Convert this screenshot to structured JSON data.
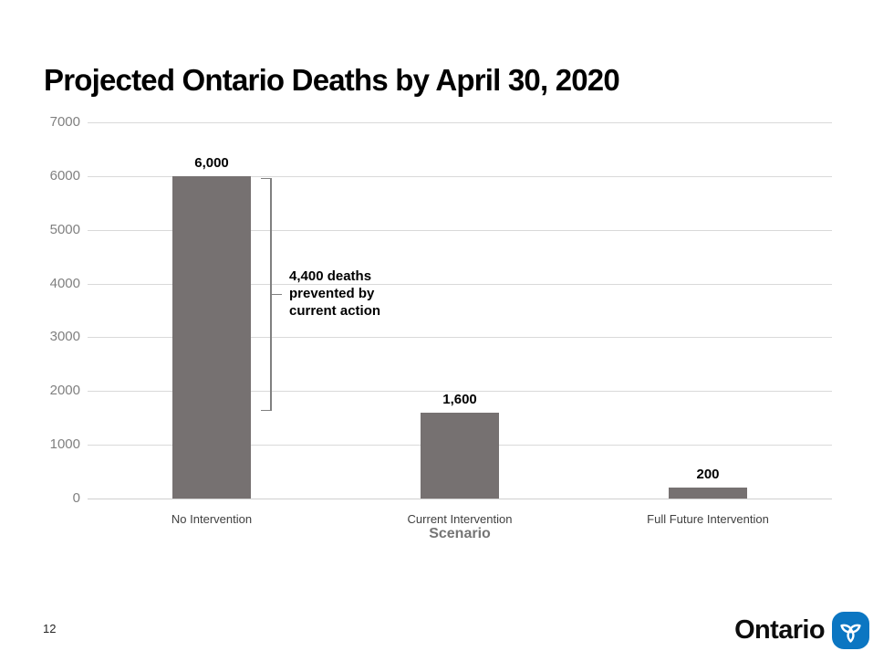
{
  "slide": {
    "title": "Projected Ontario Deaths by April 30, 2020"
  },
  "chart_data": {
    "type": "bar",
    "title": "Projected Ontario Deaths by April 30, 2020",
    "categories": [
      "No Intervention",
      "Current Intervention",
      "Full Future Intervention"
    ],
    "values": [
      6000,
      1600,
      200
    ],
    "value_labels": [
      "6,000",
      "1,600",
      "200"
    ],
    "xlabel": "Scenario",
    "ylabel": "",
    "ylim": [
      0,
      7000
    ],
    "yticks": [
      0,
      1000,
      2000,
      3000,
      4000,
      5000,
      6000,
      7000
    ],
    "ytick_labels": [
      "0",
      "1000",
      "2000",
      "3000",
      "4000",
      "5000",
      "6000",
      "7000"
    ],
    "grid": "horizontal",
    "legend": "none",
    "annotation": {
      "text": "4,400 deaths\nprevented by\ncurrent action",
      "difference": 4400,
      "bracket_spans_values": [
        6000,
        1600
      ]
    }
  },
  "footer": {
    "page_number": "12",
    "logo_text": "Ontario"
  },
  "colors": {
    "bar": "#767171",
    "gridline": "#d9d9d9",
    "ytick_label": "#808080",
    "category_label": "#404040",
    "axis_title": "#757575",
    "annotation_line": "#808080",
    "logo_blue": "#0b76c2",
    "title_text": "#000000"
  }
}
